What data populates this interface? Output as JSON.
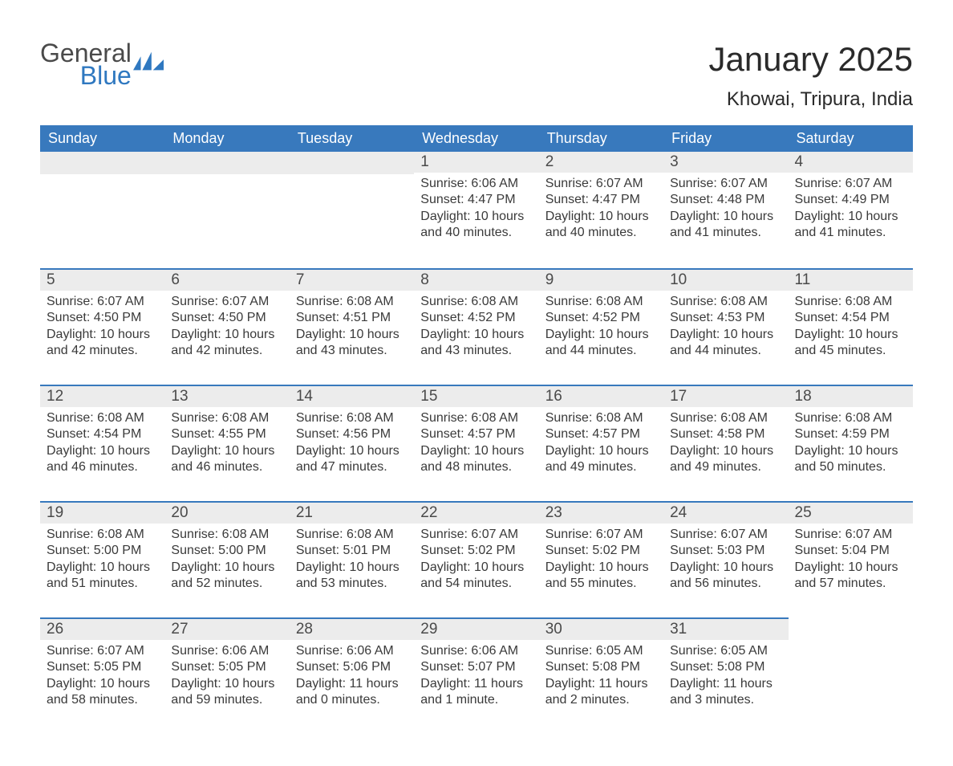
{
  "logo": {
    "word1": "General",
    "word2": "Blue"
  },
  "title": "January 2025",
  "location": "Khowai, Tripura, India",
  "headers": [
    "Sunday",
    "Monday",
    "Tuesday",
    "Wednesday",
    "Thursday",
    "Friday",
    "Saturday"
  ],
  "colors": {
    "header_bg": "#3879bd",
    "header_text": "#ffffff",
    "row_border": "#3879bd",
    "daynum_bg": "#ececec",
    "text": "#3a3a3a",
    "logo_blue": "#2f78c0"
  },
  "fonts": {
    "title_size_pt": 32,
    "location_size_pt": 18,
    "header_size_pt": 14,
    "daynum_size_pt": 14,
    "body_size_pt": 12
  },
  "layout": {
    "columns": 7,
    "rows": 5,
    "aspect_ratio": "1188:918"
  },
  "weeks": [
    [
      {
        "empty": true
      },
      {
        "empty": true
      },
      {
        "empty": true
      },
      {
        "day": "1",
        "sunrise": "Sunrise: 6:06 AM",
        "sunset": "Sunset: 4:47 PM",
        "daylight": "Daylight: 10 hours and 40 minutes."
      },
      {
        "day": "2",
        "sunrise": "Sunrise: 6:07 AM",
        "sunset": "Sunset: 4:47 PM",
        "daylight": "Daylight: 10 hours and 40 minutes."
      },
      {
        "day": "3",
        "sunrise": "Sunrise: 6:07 AM",
        "sunset": "Sunset: 4:48 PM",
        "daylight": "Daylight: 10 hours and 41 minutes."
      },
      {
        "day": "4",
        "sunrise": "Sunrise: 6:07 AM",
        "sunset": "Sunset: 4:49 PM",
        "daylight": "Daylight: 10 hours and 41 minutes."
      }
    ],
    [
      {
        "day": "5",
        "sunrise": "Sunrise: 6:07 AM",
        "sunset": "Sunset: 4:50 PM",
        "daylight": "Daylight: 10 hours and 42 minutes."
      },
      {
        "day": "6",
        "sunrise": "Sunrise: 6:07 AM",
        "sunset": "Sunset: 4:50 PM",
        "daylight": "Daylight: 10 hours and 42 minutes."
      },
      {
        "day": "7",
        "sunrise": "Sunrise: 6:08 AM",
        "sunset": "Sunset: 4:51 PM",
        "daylight": "Daylight: 10 hours and 43 minutes."
      },
      {
        "day": "8",
        "sunrise": "Sunrise: 6:08 AM",
        "sunset": "Sunset: 4:52 PM",
        "daylight": "Daylight: 10 hours and 43 minutes."
      },
      {
        "day": "9",
        "sunrise": "Sunrise: 6:08 AM",
        "sunset": "Sunset: 4:52 PM",
        "daylight": "Daylight: 10 hours and 44 minutes."
      },
      {
        "day": "10",
        "sunrise": "Sunrise: 6:08 AM",
        "sunset": "Sunset: 4:53 PM",
        "daylight": "Daylight: 10 hours and 44 minutes."
      },
      {
        "day": "11",
        "sunrise": "Sunrise: 6:08 AM",
        "sunset": "Sunset: 4:54 PM",
        "daylight": "Daylight: 10 hours and 45 minutes."
      }
    ],
    [
      {
        "day": "12",
        "sunrise": "Sunrise: 6:08 AM",
        "sunset": "Sunset: 4:54 PM",
        "daylight": "Daylight: 10 hours and 46 minutes."
      },
      {
        "day": "13",
        "sunrise": "Sunrise: 6:08 AM",
        "sunset": "Sunset: 4:55 PM",
        "daylight": "Daylight: 10 hours and 46 minutes."
      },
      {
        "day": "14",
        "sunrise": "Sunrise: 6:08 AM",
        "sunset": "Sunset: 4:56 PM",
        "daylight": "Daylight: 10 hours and 47 minutes."
      },
      {
        "day": "15",
        "sunrise": "Sunrise: 6:08 AM",
        "sunset": "Sunset: 4:57 PM",
        "daylight": "Daylight: 10 hours and 48 minutes."
      },
      {
        "day": "16",
        "sunrise": "Sunrise: 6:08 AM",
        "sunset": "Sunset: 4:57 PM",
        "daylight": "Daylight: 10 hours and 49 minutes."
      },
      {
        "day": "17",
        "sunrise": "Sunrise: 6:08 AM",
        "sunset": "Sunset: 4:58 PM",
        "daylight": "Daylight: 10 hours and 49 minutes."
      },
      {
        "day": "18",
        "sunrise": "Sunrise: 6:08 AM",
        "sunset": "Sunset: 4:59 PM",
        "daylight": "Daylight: 10 hours and 50 minutes."
      }
    ],
    [
      {
        "day": "19",
        "sunrise": "Sunrise: 6:08 AM",
        "sunset": "Sunset: 5:00 PM",
        "daylight": "Daylight: 10 hours and 51 minutes."
      },
      {
        "day": "20",
        "sunrise": "Sunrise: 6:08 AM",
        "sunset": "Sunset: 5:00 PM",
        "daylight": "Daylight: 10 hours and 52 minutes."
      },
      {
        "day": "21",
        "sunrise": "Sunrise: 6:08 AM",
        "sunset": "Sunset: 5:01 PM",
        "daylight": "Daylight: 10 hours and 53 minutes."
      },
      {
        "day": "22",
        "sunrise": "Sunrise: 6:07 AM",
        "sunset": "Sunset: 5:02 PM",
        "daylight": "Daylight: 10 hours and 54 minutes."
      },
      {
        "day": "23",
        "sunrise": "Sunrise: 6:07 AM",
        "sunset": "Sunset: 5:02 PM",
        "daylight": "Daylight: 10 hours and 55 minutes."
      },
      {
        "day": "24",
        "sunrise": "Sunrise: 6:07 AM",
        "sunset": "Sunset: 5:03 PM",
        "daylight": "Daylight: 10 hours and 56 minutes."
      },
      {
        "day": "25",
        "sunrise": "Sunrise: 6:07 AM",
        "sunset": "Sunset: 5:04 PM",
        "daylight": "Daylight: 10 hours and 57 minutes."
      }
    ],
    [
      {
        "day": "26",
        "sunrise": "Sunrise: 6:07 AM",
        "sunset": "Sunset: 5:05 PM",
        "daylight": "Daylight: 10 hours and 58 minutes."
      },
      {
        "day": "27",
        "sunrise": "Sunrise: 6:06 AM",
        "sunset": "Sunset: 5:05 PM",
        "daylight": "Daylight: 10 hours and 59 minutes."
      },
      {
        "day": "28",
        "sunrise": "Sunrise: 6:06 AM",
        "sunset": "Sunset: 5:06 PM",
        "daylight": "Daylight: 11 hours and 0 minutes."
      },
      {
        "day": "29",
        "sunrise": "Sunrise: 6:06 AM",
        "sunset": "Sunset: 5:07 PM",
        "daylight": "Daylight: 11 hours and 1 minute."
      },
      {
        "day": "30",
        "sunrise": "Sunrise: 6:05 AM",
        "sunset": "Sunset: 5:08 PM",
        "daylight": "Daylight: 11 hours and 2 minutes."
      },
      {
        "day": "31",
        "sunrise": "Sunrise: 6:05 AM",
        "sunset": "Sunset: 5:08 PM",
        "daylight": "Daylight: 11 hours and 3 minutes."
      },
      {
        "empty": true,
        "noborder": true
      }
    ]
  ]
}
